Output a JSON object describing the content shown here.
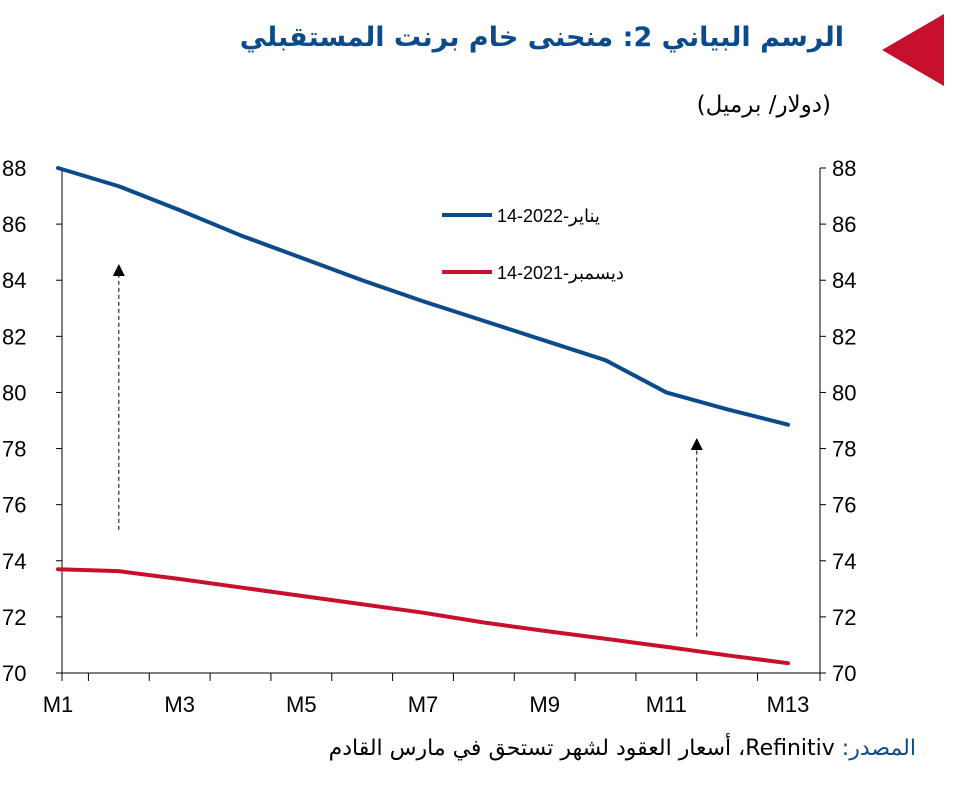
{
  "header": {
    "title": "الرسم البياني 2: منحنى خام برنت المستقبلي",
    "subtitle": "(دولار/ برميل)",
    "marker_color": "#c8102e"
  },
  "footer": {
    "source_label": "المصدر:",
    "source_text": "Refinitiv، أسعار العقود لشهر تستحق في مارس القادم"
  },
  "chart_data": {
    "type": "line",
    "x": [
      "M1",
      "M2",
      "M3",
      "M4",
      "M5",
      "M6",
      "M7",
      "M8",
      "M9",
      "M10",
      "M11",
      "M12",
      "M13"
    ],
    "xtick_labels": [
      "M1",
      "M3",
      "M5",
      "M7",
      "M9",
      "M11",
      "M13"
    ],
    "ylim": [
      70,
      88
    ],
    "yticks": [
      70,
      72,
      74,
      76,
      78,
      80,
      82,
      84,
      86,
      88
    ],
    "y_axes": "both-left-and-right",
    "grid": false,
    "legend_position": "top-center",
    "series": [
      {
        "name": "14-يناير-2022",
        "color": "#0b4a8b",
        "values": [
          88.0,
          87.35,
          86.5,
          85.6,
          84.8,
          84.0,
          83.25,
          82.55,
          81.85,
          81.15,
          80.0,
          79.4,
          78.85
        ]
      },
      {
        "name": "14-ديسمبر-2021",
        "color": "#c8102e",
        "values": [
          73.7,
          73.63,
          73.35,
          73.05,
          72.75,
          72.45,
          72.15,
          71.8,
          71.5,
          71.22,
          70.93,
          70.63,
          70.35
        ]
      }
    ],
    "annotations": [
      {
        "type": "arrow",
        "x": 2.0,
        "y_from": 75.1,
        "y_to": 84.4,
        "style": "dashed"
      },
      {
        "type": "arrow",
        "x": 11.5,
        "y_from": 71.3,
        "y_to": 78.2,
        "style": "dashed"
      }
    ]
  }
}
